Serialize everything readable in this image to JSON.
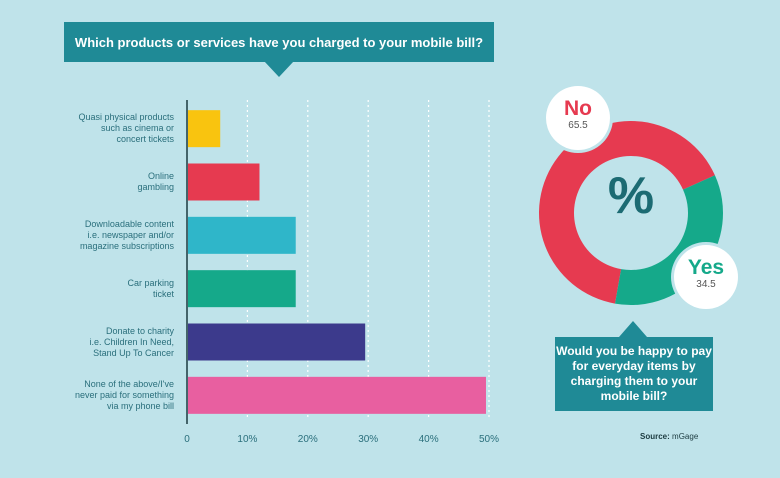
{
  "chart_data": [
    {
      "type": "bar",
      "orientation": "horizontal",
      "title": "Which products or services have you charged to your mobile bill?",
      "categories": [
        [
          "Quasi physical products",
          "such as cinema or",
          "concert tickets"
        ],
        [
          "Online",
          "gambling"
        ],
        [
          "Downloadable content",
          "i.e. newspaper and/or",
          "magazine subscriptions"
        ],
        [
          "Car parking",
          "ticket"
        ],
        [
          "Donate to charity",
          "i.e. Children In Need,",
          "Stand Up To Cancer"
        ],
        [
          "None of the above/I've",
          "never paid for something",
          "via my phone bill"
        ]
      ],
      "values": [
        5.5,
        12,
        18,
        18,
        29.5,
        49.5
      ],
      "colors": [
        "#f9c40f",
        "#e63a50",
        "#2fb6c9",
        "#15a98a",
        "#3c3a8c",
        "#e85fa0"
      ],
      "xlim": [
        0,
        50
      ],
      "xticks": [
        "0",
        "10%",
        "20%",
        "30%",
        "40%",
        "50%"
      ],
      "grid": true
    },
    {
      "type": "pie",
      "style": "donut",
      "center_label": "%",
      "question": "Would you be happy to pay for everyday items by charging them to your mobile bill?",
      "slices": [
        {
          "label": "No",
          "value": 65.5,
          "value_text": "65.5",
          "color": "#e63a50"
        },
        {
          "label": "Yes",
          "value": 34.5,
          "value_text": "34.5",
          "color": "#15a98a"
        }
      ]
    }
  ],
  "source": {
    "prefix": "Source:",
    "name": "mGage"
  }
}
